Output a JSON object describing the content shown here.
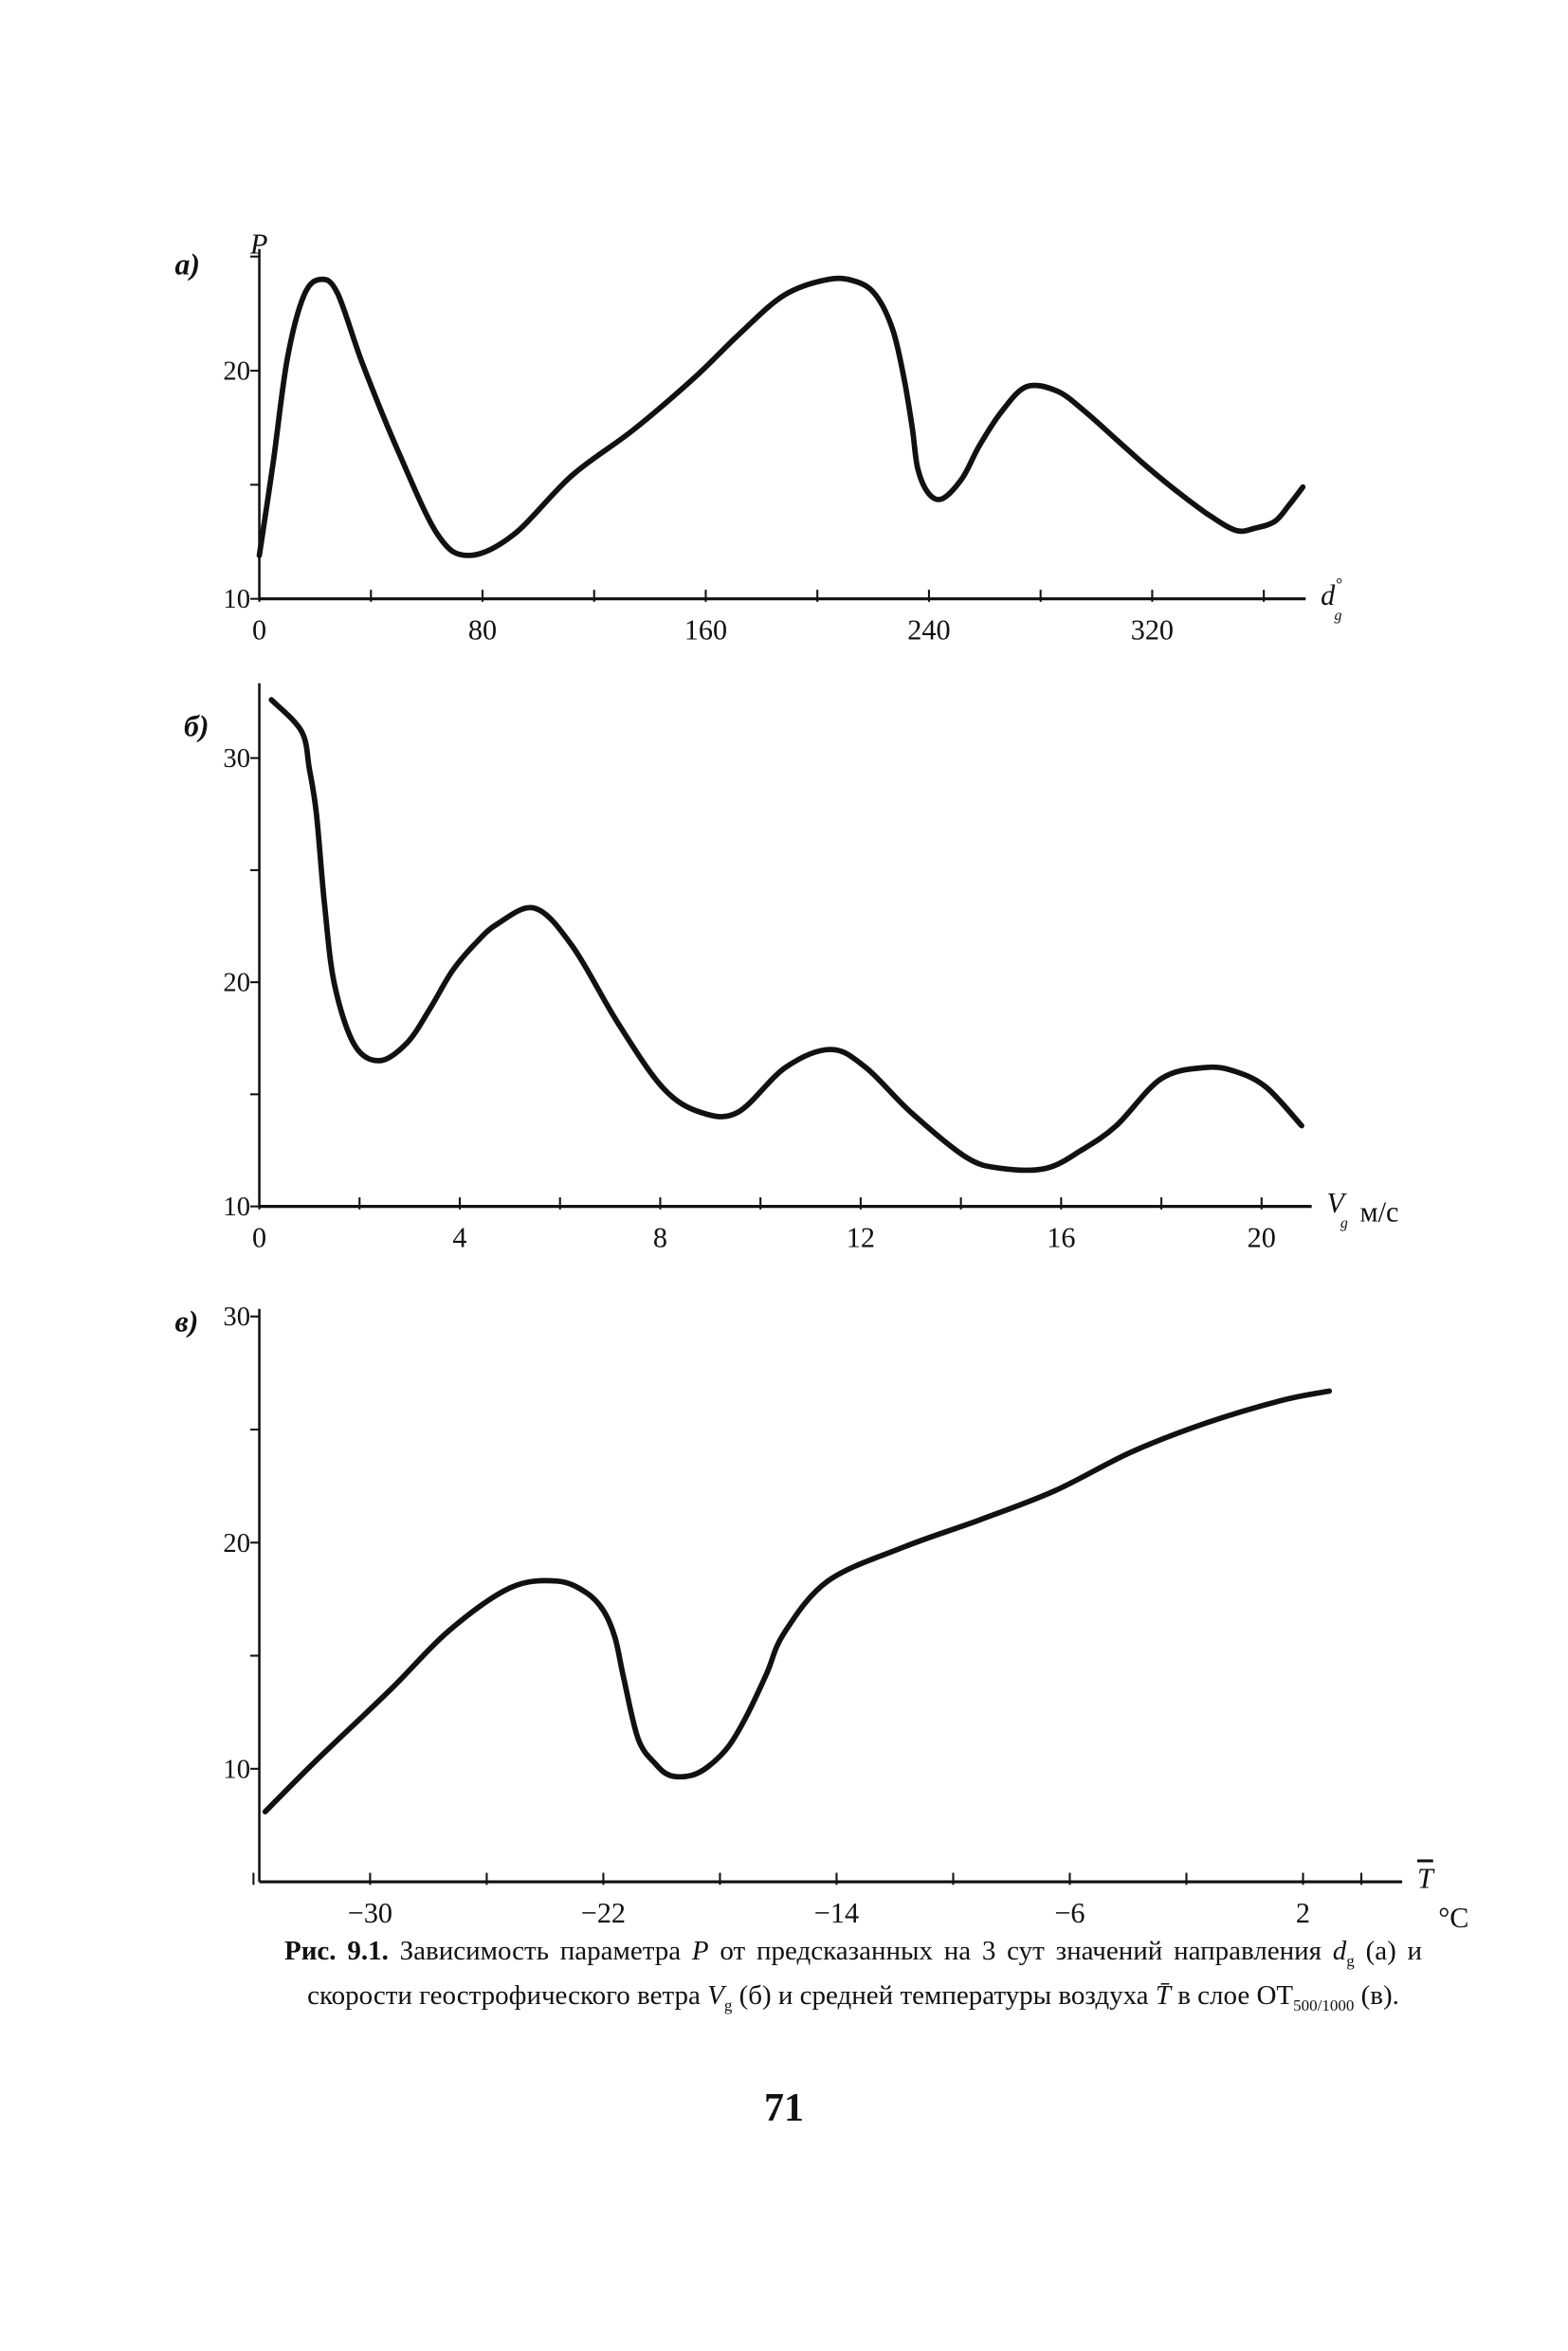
{
  "chart_data": [
    {
      "type": "line",
      "panel_label": "а)",
      "ylabel": "P",
      "xlabel": "d",
      "xlabel_sub": "g",
      "xlabel_sup": "°",
      "xlim": [
        0,
        375
      ],
      "ylim": [
        10,
        25
      ],
      "xticks": [
        0,
        40,
        80,
        120,
        160,
        200,
        240,
        280,
        320,
        360
      ],
      "xtick_labels": [
        {
          "v": 0,
          "t": "0"
        },
        {
          "v": 80,
          "t": "80"
        },
        {
          "v": 160,
          "t": "160"
        },
        {
          "v": 240,
          "t": "240"
        },
        {
          "v": 320,
          "t": "320"
        }
      ],
      "yticks": [
        10,
        15,
        20,
        25
      ],
      "ytick_labels": [
        {
          "v": 10,
          "t": "10"
        },
        {
          "v": 20,
          "t": "20"
        }
      ],
      "x": [
        0,
        5,
        10,
        16,
        22,
        28,
        37,
        50,
        64,
        75,
        91,
        112,
        134,
        156,
        172,
        188,
        204,
        214,
        221,
        227,
        231,
        234,
        236,
        240,
        245,
        252,
        258,
        266,
        275,
        286,
        296,
        307,
        318,
        329,
        340,
        350,
        357,
        364,
        369,
        374
      ],
      "y": [
        11.9,
        16,
        20.5,
        23.3,
        24,
        23.4,
        20.3,
        16.4,
        12.8,
        11.9,
        12.8,
        15.4,
        17.4,
        19.7,
        21.6,
        23.3,
        24,
        23.9,
        23.3,
        21.8,
        19.7,
        17.5,
        15.7,
        14.6,
        14.4,
        15.3,
        16.7,
        18.2,
        19.3,
        19.1,
        18.2,
        17,
        15.8,
        14.7,
        13.7,
        13,
        13.1,
        13.4,
        14.1,
        14.9
      ]
    },
    {
      "type": "line",
      "panel_label": "б)",
      "xlabel": "V",
      "xlabel_sub": "g",
      "xunit": "м/с",
      "xlim": [
        0,
        21
      ],
      "ylim": [
        10,
        33
      ],
      "xticks": [
        0,
        2,
        4,
        6,
        8,
        10,
        12,
        14,
        16,
        18,
        20
      ],
      "xtick_labels": [
        {
          "v": 0,
          "t": "0"
        },
        {
          "v": 4,
          "t": "4"
        },
        {
          "v": 8,
          "t": "8"
        },
        {
          "v": 12,
          "t": "12"
        },
        {
          "v": 16,
          "t": "16"
        },
        {
          "v": 20,
          "t": "20"
        }
      ],
      "yticks": [
        10,
        15,
        20,
        25,
        30
      ],
      "ytick_labels": [
        {
          "v": 10,
          "t": "10"
        },
        {
          "v": 20,
          "t": "20"
        },
        {
          "v": 30,
          "t": "30"
        }
      ],
      "x": [
        0.24,
        0.84,
        1.0,
        1.14,
        1.3,
        1.5,
        1.9,
        2.4,
        2.95,
        3.4,
        3.85,
        4.3,
        4.75,
        5.5,
        6.25,
        7.15,
        8.05,
        8.8,
        9.55,
        10.5,
        11.4,
        12.1,
        13.0,
        14.1,
        14.8,
        15.7,
        16.4,
        17.1,
        18.0,
        18.9,
        19.5,
        20.1,
        20.8
      ],
      "y": [
        32.6,
        31.2,
        29.5,
        27.5,
        23.5,
        19.9,
        17.2,
        16.5,
        17.3,
        18.8,
        20.5,
        21.7,
        22.6,
        23.3,
        21.6,
        18.2,
        15.3,
        14.2,
        14.2,
        16.2,
        17.0,
        16.2,
        14.2,
        12.2,
        11.7,
        11.7,
        12.5,
        13.6,
        15.7,
        16.2,
        16.0,
        15.3,
        13.6
      ]
    },
    {
      "type": "line",
      "panel_label": "в)",
      "xlabel": "T",
      "xunit": "°C",
      "xlim": [
        -33.8,
        5.4
      ],
      "ylim": [
        5,
        30
      ],
      "xticks": [
        -34,
        -30,
        -26,
        -22,
        -18,
        -14,
        -10,
        -6,
        -2,
        2,
        4
      ],
      "xtick_labels": [
        {
          "v": -30,
          "t": "−30"
        },
        {
          "v": -22,
          "t": "−22"
        },
        {
          "v": -14,
          "t": "−14"
        },
        {
          "v": -6,
          "t": "−6"
        },
        {
          "v": 2,
          "t": "2"
        }
      ],
      "yticks": [
        10,
        15,
        20,
        25,
        30
      ],
      "ytick_labels": [
        {
          "v": 10,
          "t": "10"
        },
        {
          "v": 20,
          "t": "20"
        },
        {
          "v": 30,
          "t": "30"
        }
      ],
      "x": [
        -33.6,
        -31.9,
        -29.3,
        -27.3,
        -25.2,
        -23.6,
        -22.6,
        -22.0,
        -21.6,
        -21.3,
        -20.8,
        -20.2,
        -19.7,
        -19.0,
        -18.4,
        -17.7,
        -17.1,
        -16.4,
        -15.8,
        -14.3,
        -11.7,
        -9.1,
        -6.5,
        -3.9,
        -1.3,
        1.3,
        2.9
      ],
      "y": [
        8.1,
        10.3,
        13.5,
        16.1,
        18.0,
        18.3,
        17.8,
        17.0,
        15.8,
        14.0,
        11.3,
        10.2,
        9.7,
        9.7,
        10.1,
        11.0,
        12.3,
        14.2,
        16.0,
        18.3,
        19.8,
        21.0,
        22.3,
        24.0,
        25.3,
        26.3,
        26.7
      ]
    }
  ],
  "caption": {
    "fig": "Рис. 9.1.",
    "part1": "Зависимость параметра",
    "P": "P",
    "part2": "от предсказанных на 3 сут значений направления",
    "d": "d",
    "g1": "g",
    "a": "(а)",
    "part3": "и скорости геострофического ветра",
    "V": "V",
    "g2": "g",
    "b": "(б)",
    "part4": "и средней температуры воздуха",
    "T": "T̄",
    "part5": "в слое ОТ",
    "sub": "500/1000",
    "c": "(в)."
  },
  "page_number": "71"
}
